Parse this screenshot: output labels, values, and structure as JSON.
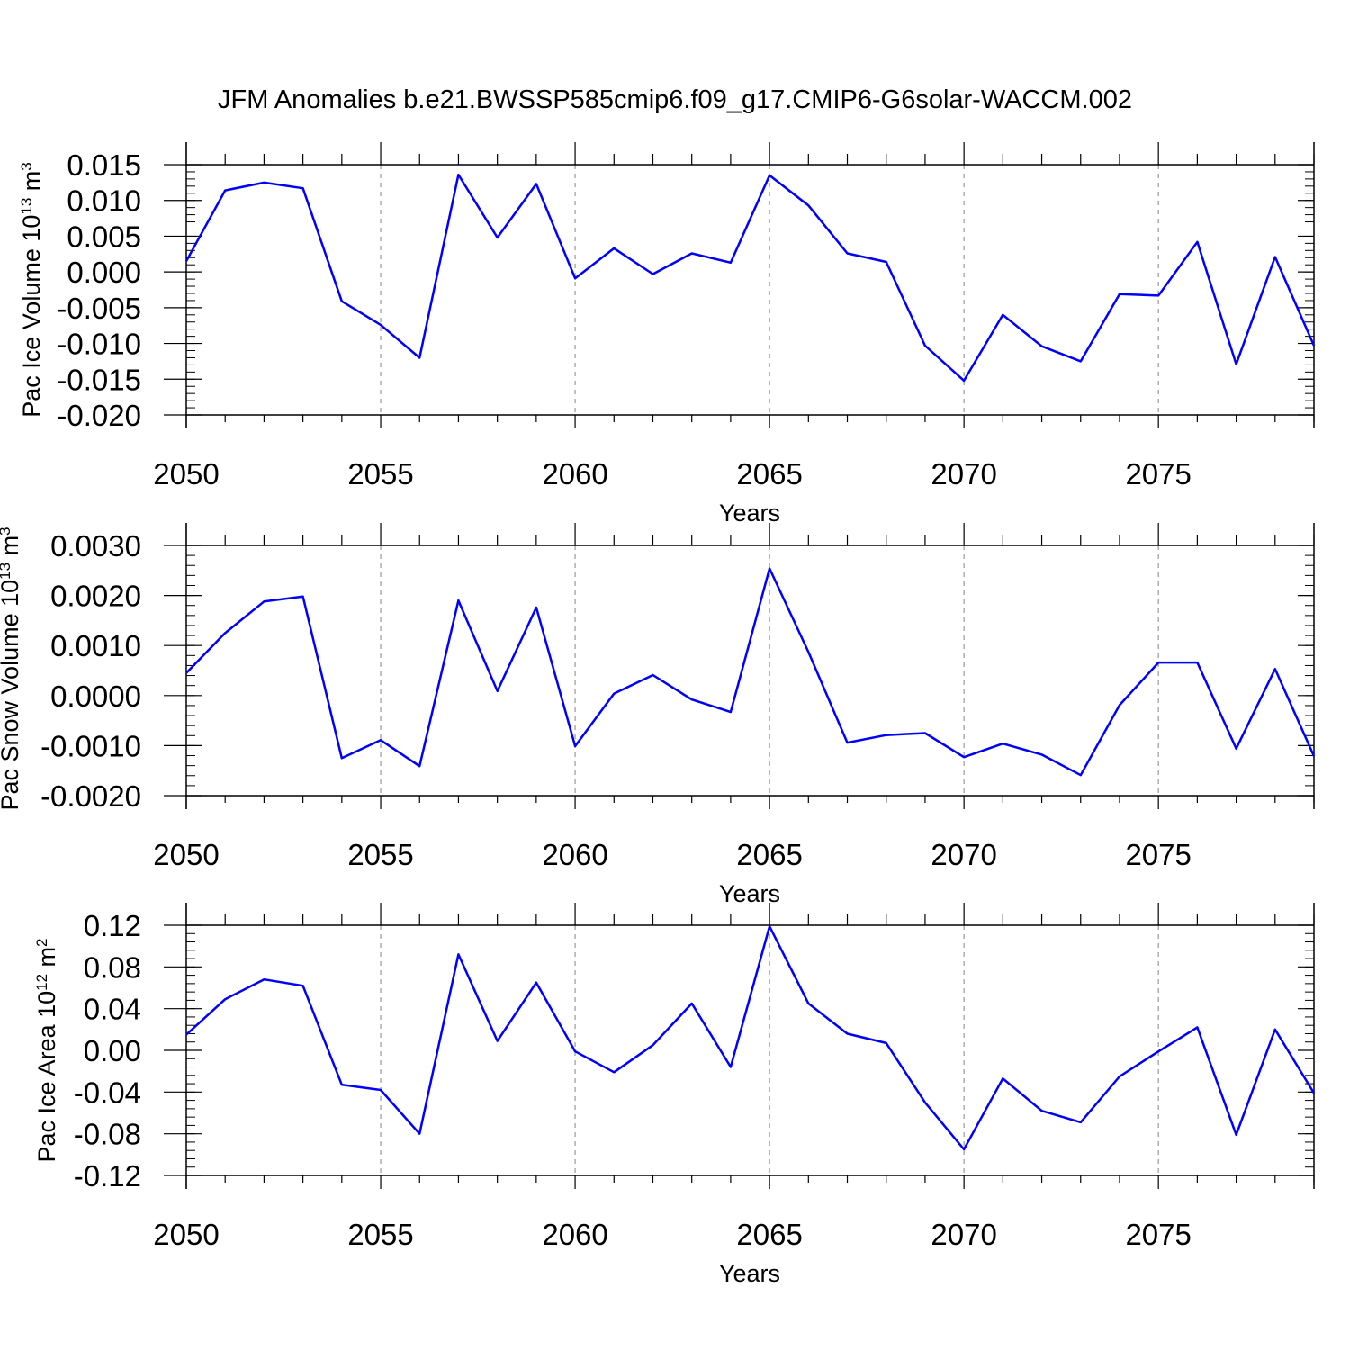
{
  "title": "JFM Anomalies b.e21.BWSSP585cmip6.f09_g17.CMIP6-G6solar-WACCM.002",
  "colors": {
    "line": "#0000ff",
    "axis": "#000000",
    "grid": "#999999",
    "background": "#ffffff"
  },
  "chart_data": [
    {
      "type": "line",
      "xlabel": "Years",
      "ylabel": {
        "text": "Pac Ice Volume 10",
        "exp": "13",
        "unit": " m",
        "unit_exp": "3"
      },
      "xlim": [
        2050,
        2079
      ],
      "xticks": [
        2050,
        2055,
        2060,
        2065,
        2070,
        2075
      ],
      "xtick_labels": [
        "2050",
        "2055",
        "2060",
        "2065",
        "2070",
        "2075"
      ],
      "ylim": [
        -0.02,
        0.015
      ],
      "yticks": [
        0.015,
        0.01,
        0.005,
        0.0,
        -0.005,
        -0.01,
        -0.015,
        -0.02
      ],
      "ytick_labels": [
        "0.015",
        "0.010",
        "0.005",
        "0.000",
        "-0.005",
        "-0.010",
        "-0.015",
        "-0.020"
      ],
      "grid": "vertical dashed at major x ticks",
      "x": [
        2050,
        2051,
        2052,
        2053,
        2054,
        2055,
        2056,
        2057,
        2058,
        2059,
        2060,
        2061,
        2062,
        2063,
        2064,
        2065,
        2066,
        2067,
        2068,
        2069,
        2070,
        2071,
        2072,
        2073,
        2074,
        2075,
        2076,
        2077,
        2078,
        2079
      ],
      "values": [
        0.0015,
        0.0114,
        0.0125,
        0.0117,
        -0.0041,
        -0.0074,
        -0.012,
        0.0136,
        0.0048,
        0.0123,
        -0.0009,
        0.0033,
        -0.0003,
        0.0026,
        0.0013,
        0.0135,
        0.0093,
        0.0026,
        0.0014,
        -0.0103,
        -0.0152,
        -0.006,
        -0.0104,
        -0.0125,
        -0.0031,
        -0.0033,
        0.0042,
        -0.0129,
        0.0021,
        -0.0103
      ]
    },
    {
      "type": "line",
      "xlabel": "Years",
      "ylabel": {
        "text": "Pac Snow Volume 10",
        "exp": "13",
        "unit": " m",
        "unit_exp": "3"
      },
      "xlim": [
        2050,
        2079
      ],
      "xticks": [
        2050,
        2055,
        2060,
        2065,
        2070,
        2075
      ],
      "xtick_labels": [
        "2050",
        "2055",
        "2060",
        "2065",
        "2070",
        "2075"
      ],
      "ylim": [
        -0.002,
        0.003
      ],
      "yticks": [
        0.003,
        0.002,
        0.001,
        0.0,
        -0.001,
        -0.002
      ],
      "ytick_labels": [
        "0.0030",
        "0.0020",
        "0.0010",
        "0.0000",
        "-0.0010",
        "-0.0020"
      ],
      "grid": "vertical dashed at major x ticks",
      "x": [
        2050,
        2051,
        2052,
        2053,
        2054,
        2055,
        2056,
        2057,
        2058,
        2059,
        2060,
        2061,
        2062,
        2063,
        2064,
        2065,
        2066,
        2067,
        2068,
        2069,
        2070,
        2071,
        2072,
        2073,
        2074,
        2075,
        2076,
        2077,
        2078,
        2079
      ],
      "values": [
        0.00045,
        0.00125,
        0.00188,
        0.00198,
        -0.00125,
        -0.00089,
        -0.00141,
        0.0019,
        9e-05,
        0.00176,
        -0.00101,
        4e-05,
        0.00041,
        -8e-05,
        -0.00033,
        0.00254,
        0.00087,
        -0.00094,
        -0.00079,
        -0.00075,
        -0.00123,
        -0.00096,
        -0.00118,
        -0.00159,
        -0.00019,
        0.00066,
        0.00066,
        -0.00106,
        0.00053,
        -0.00121
      ]
    },
    {
      "type": "line",
      "xlabel": "Years",
      "ylabel": {
        "text": "Pac Ice Area 10",
        "exp": "12",
        "unit": " m",
        "unit_exp": "2"
      },
      "xlim": [
        2050,
        2079
      ],
      "xticks": [
        2050,
        2055,
        2060,
        2065,
        2070,
        2075
      ],
      "xtick_labels": [
        "2050",
        "2055",
        "2060",
        "2065",
        "2070",
        "2075"
      ],
      "ylim": [
        -0.12,
        0.12
      ],
      "yticks": [
        0.12,
        0.08,
        0.04,
        0.0,
        -0.04,
        -0.08,
        -0.12
      ],
      "ytick_labels": [
        "0.12",
        "0.08",
        "0.04",
        "0.00",
        "-0.04",
        "-0.08",
        "-0.12"
      ],
      "grid": "vertical dashed at major x ticks",
      "x": [
        2050,
        2051,
        2052,
        2053,
        2054,
        2055,
        2056,
        2057,
        2058,
        2059,
        2060,
        2061,
        2062,
        2063,
        2064,
        2065,
        2066,
        2067,
        2068,
        2069,
        2070,
        2071,
        2072,
        2073,
        2074,
        2075,
        2076,
        2077,
        2078,
        2079
      ],
      "values": [
        0.015,
        0.049,
        0.068,
        0.062,
        -0.033,
        -0.038,
        -0.08,
        0.092,
        0.009,
        0.065,
        -0.001,
        -0.021,
        0.005,
        0.045,
        -0.016,
        0.119,
        0.045,
        0.016,
        0.007,
        -0.05,
        -0.095,
        -0.027,
        -0.058,
        -0.069,
        -0.025,
        -0.001,
        0.022,
        -0.081,
        0.02,
        -0.041
      ]
    }
  ]
}
